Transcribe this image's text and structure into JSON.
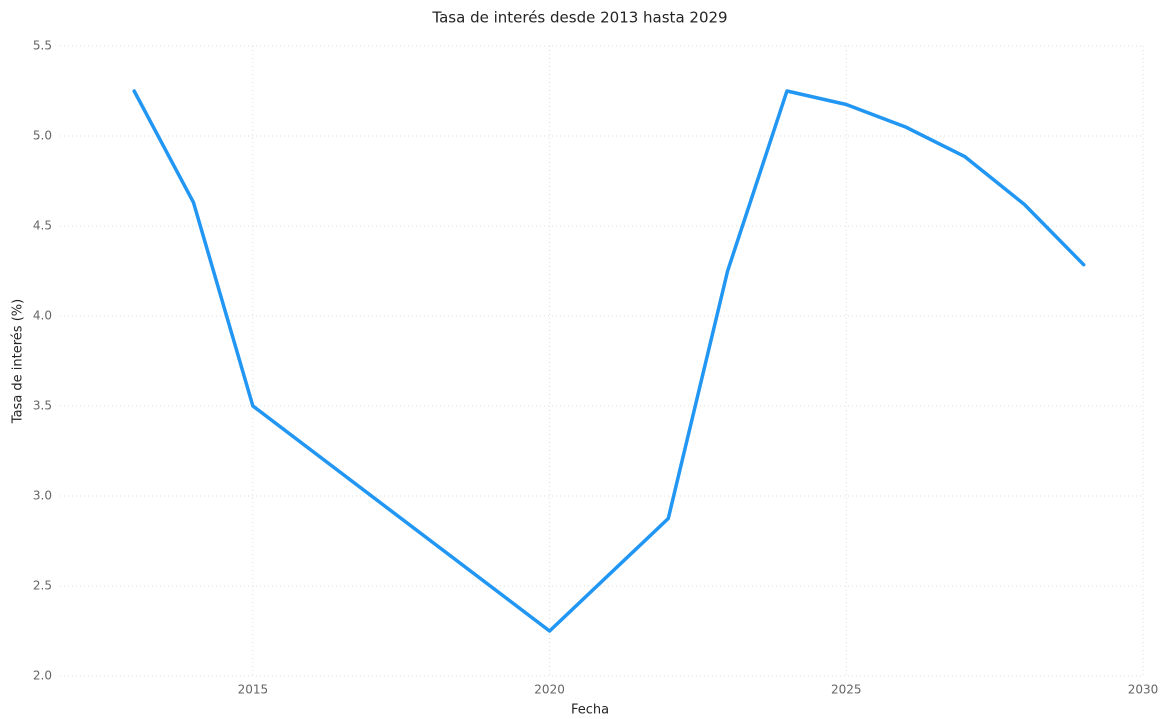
{
  "chart_data": {
    "type": "line",
    "title": "Tasa de interés desde 2013 hasta 2029",
    "x_label": "Fecha",
    "y_label": "Tasa de interés (%)",
    "x": [
      2013,
      2014,
      2015,
      2020,
      2022,
      2023,
      2024,
      2025,
      2026,
      2027,
      2028,
      2029
    ],
    "values": [
      5.25,
      4.63,
      3.5,
      2.25,
      2.875,
      4.25,
      5.25,
      5.175,
      5.05,
      4.885,
      4.62,
      4.285
    ],
    "color": "#2196f3",
    "xlim": [
      2011.75,
      2030
    ],
    "xticks": [
      2015,
      2020,
      2025,
      2030
    ],
    "ylim": [
      2,
      5.5
    ],
    "yticks": [
      {
        "value": 2,
        "label": "2.0"
      },
      2.5,
      {
        "value": 3,
        "label": "3.0"
      },
      3.5,
      {
        "value": 4,
        "label": "4.0"
      },
      4.5,
      {
        "value": 5,
        "label": "5.0"
      },
      5.5
    ],
    "grid": true
  }
}
